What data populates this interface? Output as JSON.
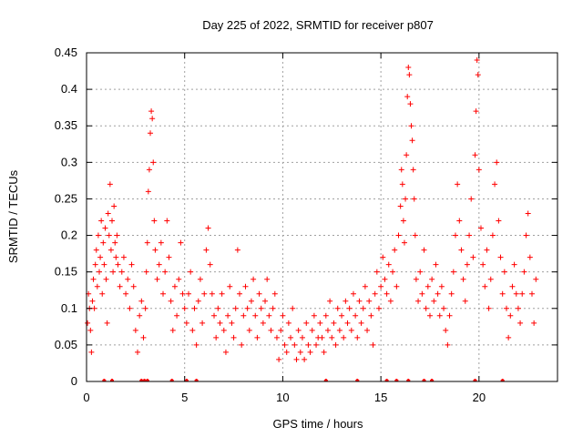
{
  "chart_data": {
    "type": "scatter",
    "title": "Day 225 of 2022, SRMTID for receiver p807",
    "xlabel": "GPS time / hours",
    "ylabel": "SRMTID / TECUs",
    "xlim": [
      0,
      24
    ],
    "ylim": [
      0,
      0.45
    ],
    "x_ticks": [
      0,
      5,
      10,
      15,
      20
    ],
    "x_tick_labels": [
      "0",
      "5",
      "10",
      "15",
      "20"
    ],
    "y_ticks": [
      0,
      0.05,
      0.1,
      0.15,
      0.2,
      0.25,
      0.3,
      0.35,
      0.4,
      0.45
    ],
    "y_tick_labels": [
      "0",
      "0.05",
      "0.1",
      "0.15",
      "0.2",
      "0.25",
      "0.3",
      "0.35",
      "0.4",
      "0.45"
    ],
    "grid": true,
    "marker": "+",
    "series": [
      {
        "name": "SRMTID",
        "color": "#ff0000",
        "points": [
          [
            0.05,
            0.08
          ],
          [
            0.1,
            0.12
          ],
          [
            0.15,
            0.1
          ],
          [
            0.2,
            0.07
          ],
          [
            0.25,
            0.04
          ],
          [
            0.3,
            0.11
          ],
          [
            0.35,
            0.14
          ],
          [
            0.4,
            0.1
          ],
          [
            0.45,
            0.16
          ],
          [
            0.5,
            0.18
          ],
          [
            0.55,
            0.13
          ],
          [
            0.6,
            0.2
          ],
          [
            0.65,
            0.15
          ],
          [
            0.7,
            0.17
          ],
          [
            0.75,
            0.22
          ],
          [
            0.8,
            0.12
          ],
          [
            0.85,
            0.19
          ],
          [
            0.9,
            0.16
          ],
          [
            0.95,
            0.21
          ],
          [
            1.0,
            0.14
          ],
          [
            1.05,
            0.08
          ],
          [
            1.1,
            0.23
          ],
          [
            1.15,
            0.2
          ],
          [
            1.2,
            0.27
          ],
          [
            1.25,
            0.18
          ],
          [
            1.3,
            0.22
          ],
          [
            1.35,
            0.15
          ],
          [
            1.4,
            0.24
          ],
          [
            1.45,
            0.19
          ],
          [
            1.5,
            0.17
          ],
          [
            1.55,
            0.2
          ],
          [
            1.6,
            0.16
          ],
          [
            1.7,
            0.13
          ],
          [
            1.8,
            0.15
          ],
          [
            1.9,
            0.17
          ],
          [
            2.0,
            0.12
          ],
          [
            2.1,
            0.14
          ],
          [
            2.2,
            0.1
          ],
          [
            2.3,
            0.16
          ],
          [
            2.4,
            0.13
          ],
          [
            2.5,
            0.07
          ],
          [
            2.6,
            0.04
          ],
          [
            2.7,
            0.09
          ],
          [
            2.8,
            0.11
          ],
          [
            2.9,
            0.06
          ],
          [
            3.0,
            0.1
          ],
          [
            3.05,
            0.15
          ],
          [
            3.1,
            0.19
          ],
          [
            3.15,
            0.26
          ],
          [
            3.2,
            0.29
          ],
          [
            3.25,
            0.34
          ],
          [
            3.3,
            0.37
          ],
          [
            3.35,
            0.36
          ],
          [
            3.4,
            0.3
          ],
          [
            3.45,
            0.22
          ],
          [
            3.5,
            0.18
          ],
          [
            3.6,
            0.14
          ],
          [
            3.7,
            0.16
          ],
          [
            3.8,
            0.19
          ],
          [
            3.9,
            0.12
          ],
          [
            4.0,
            0.15
          ],
          [
            4.1,
            0.22
          ],
          [
            4.2,
            0.17
          ],
          [
            4.3,
            0.11
          ],
          [
            4.4,
            0.07
          ],
          [
            4.5,
            0.13
          ],
          [
            4.6,
            0.09
          ],
          [
            4.7,
            0.14
          ],
          [
            4.8,
            0.19
          ],
          [
            4.9,
            0.12
          ],
          [
            5.0,
            0.1
          ],
          [
            5.1,
            0.08
          ],
          [
            5.2,
            0.12
          ],
          [
            5.3,
            0.15
          ],
          [
            5.4,
            0.07
          ],
          [
            5.5,
            0.1
          ],
          [
            5.6,
            0.05
          ],
          [
            5.7,
            0.11
          ],
          [
            5.8,
            0.14
          ],
          [
            5.9,
            0.08
          ],
          [
            6.0,
            0.12
          ],
          [
            6.1,
            0.18
          ],
          [
            6.2,
            0.21
          ],
          [
            6.3,
            0.16
          ],
          [
            6.4,
            0.12
          ],
          [
            6.5,
            0.09
          ],
          [
            6.6,
            0.06
          ],
          [
            6.7,
            0.1
          ],
          [
            6.8,
            0.08
          ],
          [
            6.9,
            0.12
          ],
          [
            7.0,
            0.07
          ],
          [
            7.1,
            0.04
          ],
          [
            7.2,
            0.09
          ],
          [
            7.3,
            0.13
          ],
          [
            7.4,
            0.08
          ],
          [
            7.5,
            0.06
          ],
          [
            7.6,
            0.1
          ],
          [
            7.7,
            0.18
          ],
          [
            7.8,
            0.12
          ],
          [
            7.9,
            0.05
          ],
          [
            8.0,
            0.09
          ],
          [
            8.1,
            0.13
          ],
          [
            8.2,
            0.1
          ],
          [
            8.3,
            0.07
          ],
          [
            8.4,
            0.11
          ],
          [
            8.5,
            0.14
          ],
          [
            8.6,
            0.09
          ],
          [
            8.7,
            0.06
          ],
          [
            8.8,
            0.12
          ],
          [
            8.9,
            0.1
          ],
          [
            9.0,
            0.08
          ],
          [
            9.1,
            0.11
          ],
          [
            9.2,
            0.14
          ],
          [
            9.3,
            0.09
          ],
          [
            9.4,
            0.07
          ],
          [
            9.5,
            0.1
          ],
          [
            9.6,
            0.12
          ],
          [
            9.7,
            0.06
          ],
          [
            9.8,
            0.03
          ],
          [
            9.9,
            0.07
          ],
          [
            10.0,
            0.09
          ],
          [
            10.1,
            0.05
          ],
          [
            10.2,
            0.04
          ],
          [
            10.3,
            0.08
          ],
          [
            10.4,
            0.06
          ],
          [
            10.5,
            0.1
          ],
          [
            10.6,
            0.05
          ],
          [
            10.7,
            0.03
          ],
          [
            10.8,
            0.07
          ],
          [
            10.9,
            0.04
          ],
          [
            11.0,
            0.06
          ],
          [
            11.1,
            0.03
          ],
          [
            11.2,
            0.08
          ],
          [
            11.3,
            0.05
          ],
          [
            11.4,
            0.04
          ],
          [
            11.5,
            0.07
          ],
          [
            11.6,
            0.09
          ],
          [
            11.7,
            0.05
          ],
          [
            11.8,
            0.06
          ],
          [
            11.9,
            0.08
          ],
          [
            12.0,
            0.06
          ],
          [
            12.1,
            0.04
          ],
          [
            12.2,
            0.09
          ],
          [
            12.3,
            0.07
          ],
          [
            12.4,
            0.11
          ],
          [
            12.5,
            0.06
          ],
          [
            12.6,
            0.08
          ],
          [
            12.7,
            0.05
          ],
          [
            12.8,
            0.1
          ],
          [
            12.9,
            0.07
          ],
          [
            13.0,
            0.09
          ],
          [
            13.1,
            0.06
          ],
          [
            13.2,
            0.11
          ],
          [
            13.3,
            0.08
          ],
          [
            13.4,
            0.1
          ],
          [
            13.5,
            0.07
          ],
          [
            13.6,
            0.12
          ],
          [
            13.7,
            0.09
          ],
          [
            13.8,
            0.06
          ],
          [
            13.9,
            0.11
          ],
          [
            14.0,
            0.08
          ],
          [
            14.1,
            0.1
          ],
          [
            14.2,
            0.13
          ],
          [
            14.3,
            0.07
          ],
          [
            14.4,
            0.11
          ],
          [
            14.5,
            0.09
          ],
          [
            14.6,
            0.05
          ],
          [
            14.7,
            0.12
          ],
          [
            14.8,
            0.15
          ],
          [
            14.9,
            0.1
          ],
          [
            15.0,
            0.13
          ],
          [
            15.1,
            0.17
          ],
          [
            15.2,
            0.14
          ],
          [
            15.3,
            0.12
          ],
          [
            15.4,
            0.16
          ],
          [
            15.5,
            0.11
          ],
          [
            15.6,
            0.15
          ],
          [
            15.7,
            0.18
          ],
          [
            15.8,
            0.13
          ],
          [
            15.9,
            0.2
          ],
          [
            16.0,
            0.24
          ],
          [
            16.05,
            0.29
          ],
          [
            16.1,
            0.27
          ],
          [
            16.15,
            0.22
          ],
          [
            16.2,
            0.19
          ],
          [
            16.25,
            0.25
          ],
          [
            16.3,
            0.31
          ],
          [
            16.35,
            0.39
          ],
          [
            16.4,
            0.43
          ],
          [
            16.45,
            0.42
          ],
          [
            16.5,
            0.38
          ],
          [
            16.55,
            0.35
          ],
          [
            16.6,
            0.33
          ],
          [
            16.65,
            0.29
          ],
          [
            16.7,
            0.25
          ],
          [
            16.75,
            0.2
          ],
          [
            16.8,
            0.14
          ],
          [
            16.9,
            0.11
          ],
          [
            17.0,
            0.15
          ],
          [
            17.1,
            0.12
          ],
          [
            17.2,
            0.18
          ],
          [
            17.3,
            0.1
          ],
          [
            17.4,
            0.13
          ],
          [
            17.5,
            0.09
          ],
          [
            17.6,
            0.14
          ],
          [
            17.7,
            0.11
          ],
          [
            17.8,
            0.16
          ],
          [
            17.9,
            0.12
          ],
          [
            18.0,
            0.09
          ],
          [
            18.1,
            0.13
          ],
          [
            18.2,
            0.1
          ],
          [
            18.3,
            0.07
          ],
          [
            18.4,
            0.05
          ],
          [
            18.5,
            0.09
          ],
          [
            18.6,
            0.12
          ],
          [
            18.7,
            0.15
          ],
          [
            18.8,
            0.2
          ],
          [
            18.9,
            0.27
          ],
          [
            19.0,
            0.22
          ],
          [
            19.1,
            0.18
          ],
          [
            19.2,
            0.14
          ],
          [
            19.3,
            0.11
          ],
          [
            19.4,
            0.16
          ],
          [
            19.5,
            0.2
          ],
          [
            19.6,
            0.25
          ],
          [
            19.7,
            0.17
          ],
          [
            19.8,
            0.31
          ],
          [
            19.85,
            0.37
          ],
          [
            19.9,
            0.44
          ],
          [
            19.95,
            0.42
          ],
          [
            20.0,
            0.29
          ],
          [
            20.1,
            0.21
          ],
          [
            20.2,
            0.16
          ],
          [
            20.3,
            0.13
          ],
          [
            20.4,
            0.18
          ],
          [
            20.5,
            0.1
          ],
          [
            20.6,
            0.14
          ],
          [
            20.7,
            0.2
          ],
          [
            20.8,
            0.27
          ],
          [
            20.9,
            0.3
          ],
          [
            21.0,
            0.22
          ],
          [
            21.1,
            0.17
          ],
          [
            21.2,
            0.12
          ],
          [
            21.3,
            0.15
          ],
          [
            21.4,
            0.1
          ],
          [
            21.5,
            0.06
          ],
          [
            21.6,
            0.09
          ],
          [
            21.7,
            0.13
          ],
          [
            21.8,
            0.16
          ],
          [
            21.9,
            0.12
          ],
          [
            22.0,
            0.1
          ],
          [
            22.1,
            0.08
          ],
          [
            22.2,
            0.12
          ],
          [
            22.3,
            0.15
          ],
          [
            22.4,
            0.2
          ],
          [
            22.5,
            0.23
          ],
          [
            22.6,
            0.17
          ],
          [
            22.7,
            0.12
          ],
          [
            22.8,
            0.08
          ],
          [
            22.9,
            0.14
          ]
        ],
        "zero_points": [
          0.9,
          1.3,
          2.8,
          2.95,
          3.1,
          4.35,
          5.1,
          5.6,
          12.2,
          13.8,
          15.3,
          15.8,
          16.4,
          17.2,
          17.6,
          19.8,
          21.2
        ]
      }
    ]
  }
}
